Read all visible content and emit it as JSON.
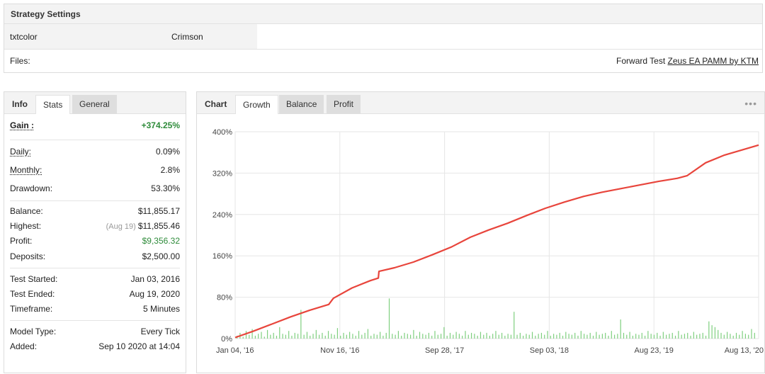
{
  "settings": {
    "title": "Strategy Settings",
    "param_key": "txtcolor",
    "param_value": "Crimson",
    "files_label": "Files:",
    "forward_label": "Forward Test",
    "forward_link": "Zeus EA PAMM by KTM"
  },
  "left_tabs": {
    "title": "Info",
    "stats": "Stats",
    "general": "General"
  },
  "stats": {
    "gain": {
      "label": "Gain :",
      "value": "+374.25%"
    },
    "daily": {
      "label": "Daily:",
      "value": "0.09%"
    },
    "monthly": {
      "label": "Monthly:",
      "value": "2.8%"
    },
    "drawdown": {
      "label": "Drawdown:",
      "value": "53.30%"
    },
    "balance": {
      "label": "Balance:",
      "value": "$11,855.17"
    },
    "highest": {
      "label": "Highest:",
      "note": "(Aug 19)",
      "value": "$11,855.46"
    },
    "profit": {
      "label": "Profit:",
      "value": "$9,356.32"
    },
    "deposits": {
      "label": "Deposits:",
      "value": "$2,500.00"
    },
    "test_started": {
      "label": "Test Started:",
      "value": "Jan 03, 2016"
    },
    "test_ended": {
      "label": "Test Ended:",
      "value": "Aug 19, 2020"
    },
    "timeframe": {
      "label": "Timeframe:",
      "value": "5 Minutes"
    },
    "model_type": {
      "label": "Model Type:",
      "value": "Every Tick"
    },
    "added": {
      "label": "Added:",
      "value": "Sep 10 2020 at 14:04"
    }
  },
  "chart_tabs": {
    "title": "Chart",
    "growth": "Growth",
    "balance": "Balance",
    "profit": "Profit",
    "more_icon": "more-dots-icon"
  },
  "colors": {
    "growth_line": "#e8453c",
    "volume_bars": "#7fcf7f",
    "positive": "#2e8b3a"
  },
  "chart_data": {
    "type": "line",
    "title": "",
    "xlabel": "",
    "ylabel": "",
    "ylim": [
      0,
      400
    ],
    "y_ticks": [
      "0%",
      "80%",
      "160%",
      "240%",
      "320%",
      "400%"
    ],
    "y_tick_values": [
      0,
      80,
      160,
      240,
      320,
      400
    ],
    "x_ticks": [
      "Jan 04, '16",
      "Nov 16, '16",
      "Sep 28, '17",
      "Sep 03, '18",
      "Aug 23, '19",
      "Aug 13, '20"
    ],
    "x_range": [
      "2016-01-04",
      "2020-08-19"
    ],
    "grid": true,
    "series": [
      {
        "kind": "line",
        "x": [
          "2016-01-04",
          "2016-03-01",
          "2016-05-01",
          "2016-07-01",
          "2016-09-01",
          "2016-11-01",
          "2016-11-16",
          "2017-01-15",
          "2017-03-15",
          "2017-04-10",
          "2017-04-12",
          "2017-06-01",
          "2017-08-01",
          "2017-10-01",
          "2017-12-01",
          "2018-02-01",
          "2018-04-01",
          "2018-06-01",
          "2018-08-01",
          "2018-10-01",
          "2018-12-01",
          "2019-02-01",
          "2019-04-01",
          "2019-06-01",
          "2019-08-01",
          "2019-10-01",
          "2019-12-01",
          "2020-01-01",
          "2020-03-01",
          "2020-05-01",
          "2020-08-19"
        ],
        "y": [
          2,
          14,
          28,
          42,
          55,
          66,
          78,
          98,
          112,
          117,
          130,
          137,
          148,
          162,
          177,
          196,
          210,
          223,
          238,
          252,
          264,
          275,
          283,
          290,
          297,
          304,
          310,
          315,
          340,
          355,
          374.25
        ]
      },
      {
        "kind": "volume",
        "values": [
          3,
          6,
          2,
          8,
          4,
          10,
          3,
          5,
          7,
          2,
          9,
          4,
          6,
          3,
          12,
          5,
          4,
          8,
          3,
          6,
          5,
          30,
          4,
          7,
          3,
          5,
          9,
          4,
          6,
          3,
          8,
          5,
          4,
          11,
          3,
          6,
          4,
          7,
          5,
          3,
          8,
          4,
          6,
          10,
          3,
          5,
          4,
          7,
          3,
          6,
          42,
          5,
          4,
          8,
          3,
          6,
          5,
          4,
          9,
          3,
          7,
          5,
          4,
          6,
          3,
          8,
          4,
          5,
          12,
          3,
          6,
          4,
          7,
          5,
          3,
          8,
          4,
          6,
          5,
          3,
          7,
          4,
          6,
          3,
          5,
          8,
          4,
          6,
          3,
          5,
          4,
          28,
          4,
          6,
          3,
          5,
          4,
          7,
          3,
          5,
          6,
          4,
          8,
          3,
          5,
          4,
          6,
          3,
          7,
          5,
          4,
          6,
          3,
          8,
          5,
          4,
          6,
          3,
          7,
          4,
          5,
          6,
          3,
          8,
          4,
          5,
          20,
          6,
          4,
          7,
          3,
          5,
          4,
          6,
          3,
          8,
          5,
          4,
          6,
          3,
          7,
          4,
          5,
          6,
          3,
          8,
          4,
          5,
          6,
          3,
          7,
          4,
          5,
          6,
          3,
          18,
          14,
          12,
          9,
          6,
          4,
          7,
          5,
          3,
          6,
          4,
          8,
          5,
          4,
          10,
          6
        ]
      }
    ]
  }
}
